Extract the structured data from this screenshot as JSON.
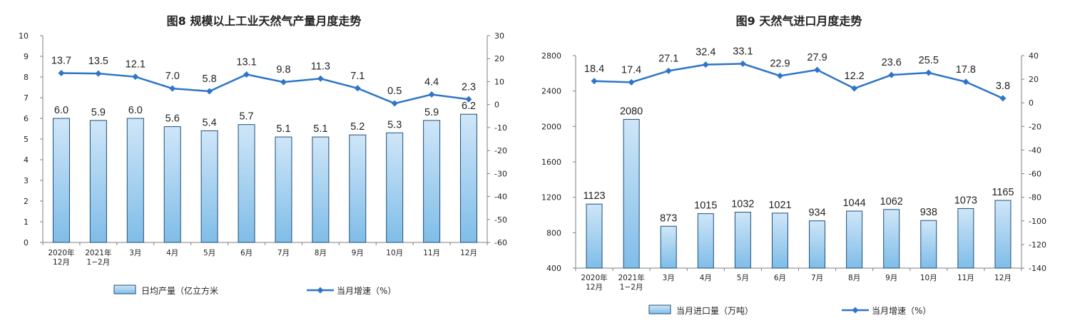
{
  "chart_data": [
    {
      "type": "bar",
      "title": "图8  规模以上工业天然气产量月度走势",
      "categories": [
        [
          "2020年",
          "12月"
        ],
        [
          "2021年",
          "1−2月"
        ],
        [
          "3月"
        ],
        [
          "4月"
        ],
        [
          "5月"
        ],
        [
          "6月"
        ],
        [
          "7月"
        ],
        [
          "8月"
        ],
        [
          "9月"
        ],
        [
          "10月"
        ],
        [
          "11月"
        ],
        [
          "12月"
        ]
      ],
      "series": [
        {
          "name": "日均产量（亿立方米",
          "type": "bar",
          "axis": "left",
          "values": [
            6.0,
            5.9,
            6.0,
            5.6,
            5.4,
            5.7,
            5.1,
            5.1,
            5.2,
            5.3,
            5.9,
            6.2
          ],
          "labels": [
            "6.0",
            "5.9",
            "6.0",
            "5.6",
            "5.4",
            "5.7",
            "5.1",
            "5.1",
            "5.2",
            "5.3",
            "5.9",
            "6.2"
          ]
        },
        {
          "name": "当月增速（%）",
          "type": "line",
          "axis": "right",
          "values": [
            13.7,
            13.5,
            12.1,
            7.0,
            5.8,
            13.1,
            9.8,
            11.3,
            7.1,
            0.5,
            4.4,
            2.3
          ],
          "labels": [
            "13.7",
            "13.5",
            "12.1",
            "7.0",
            "5.8",
            "13.1",
            "9.8",
            "11.3",
            "7.1",
            "0.5",
            "4.4",
            "2.3"
          ]
        }
      ],
      "y_left": {
        "min": 0,
        "max": 10,
        "ticks": [
          "0",
          "1",
          "2",
          "3",
          "4",
          "5",
          "6",
          "7",
          "8",
          "9",
          "10"
        ]
      },
      "y_right": {
        "min": -60,
        "max": 30,
        "ticks": [
          "-60",
          "-50",
          "-40",
          "-30",
          "-20",
          "-10",
          "0",
          "10",
          "20",
          "30"
        ]
      },
      "legend_position": "bottom",
      "grid": false
    },
    {
      "type": "bar",
      "title": "图9  天然气进口月度走势",
      "categories": [
        [
          "2020年",
          "12月"
        ],
        [
          "2021年",
          "1−2月"
        ],
        [
          "3月"
        ],
        [
          "4月"
        ],
        [
          "5月"
        ],
        [
          "6月"
        ],
        [
          "7月"
        ],
        [
          "8月"
        ],
        [
          "9月"
        ],
        [
          "10月"
        ],
        [
          "11月"
        ],
        [
          "12月"
        ]
      ],
      "series": [
        {
          "name": "当月进口量（万吨）",
          "type": "bar",
          "axis": "left",
          "values": [
            1123,
            2080,
            873,
            1015,
            1032,
            1021,
            934,
            1044,
            1062,
            938,
            1073,
            1165
          ],
          "labels": [
            "1123",
            "2080",
            "873",
            "1015",
            "1032",
            "1021",
            "934",
            "1044",
            "1062",
            "938",
            "1073",
            "1165"
          ]
        },
        {
          "name": "当月增速（%）",
          "type": "line",
          "axis": "right",
          "values": [
            18.4,
            17.4,
            27.1,
            32.4,
            33.1,
            22.9,
            27.9,
            12.2,
            23.6,
            25.5,
            17.8,
            3.8
          ],
          "labels": [
            "18.4",
            "17.4",
            "27.1",
            "32.4",
            "33.1",
            "22.9",
            "27.9",
            "12.2",
            "23.6",
            "25.5",
            "17.8",
            "3.8"
          ]
        }
      ],
      "y_left": {
        "min": 400,
        "max": 2800,
        "ticks": [
          "400",
          "800",
          "1200",
          "1600",
          "2000",
          "2400",
          "2800"
        ]
      },
      "y_right": {
        "min": -140,
        "max": 40,
        "ticks": [
          "-140",
          "-120",
          "-100",
          "-80",
          "-60",
          "-40",
          "-20",
          "0",
          "20",
          "40"
        ]
      },
      "legend_position": "bottom",
      "grid": false
    }
  ],
  "colors": {
    "bar_fill_top": "#cfe6f8",
    "bar_fill_bottom": "#7fbde8",
    "bar_stroke": "#1f4e79",
    "line": "#2e75c8",
    "axis": "#7f7f7f",
    "text": "#222222"
  }
}
